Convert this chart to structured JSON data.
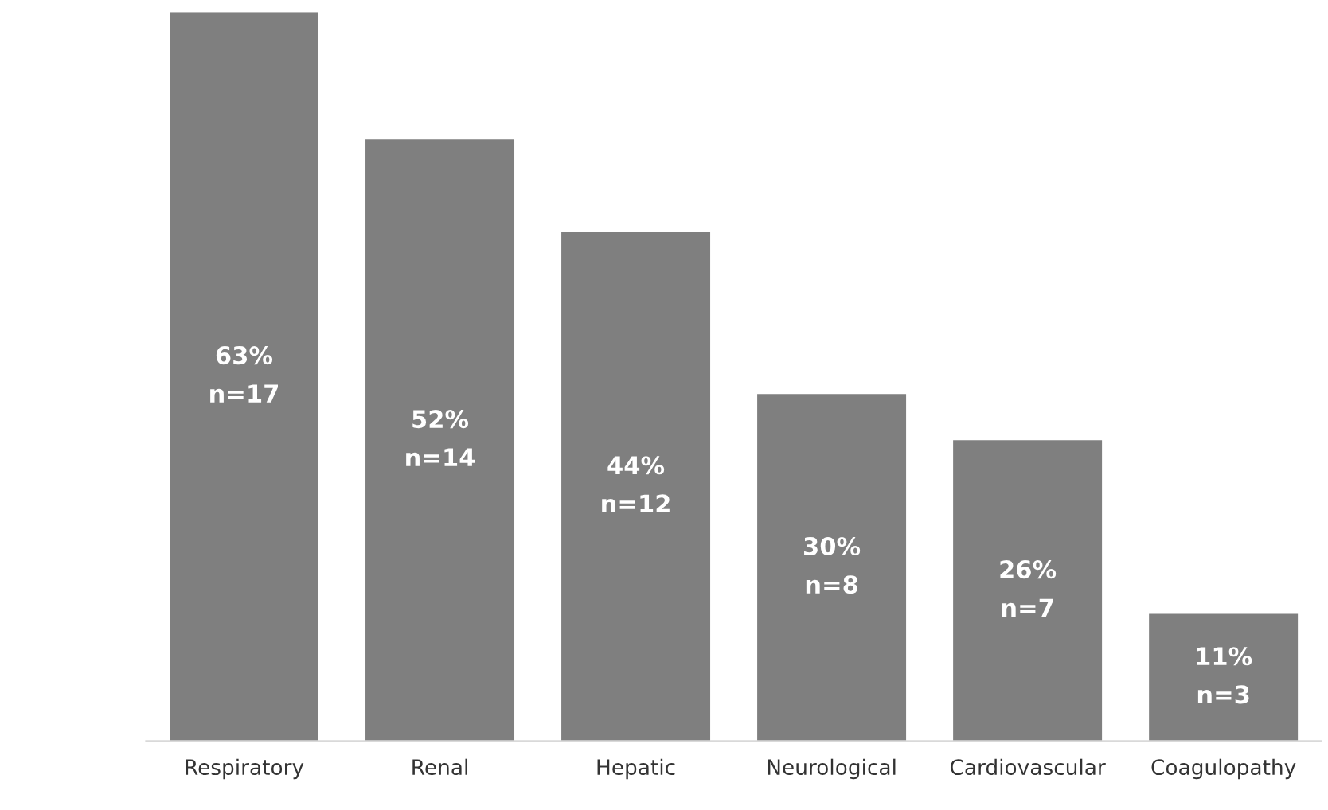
{
  "chart_data": {
    "type": "bar",
    "categories": [
      "Respiratory",
      "Renal",
      "Hepatic",
      "Neurological",
      "Cardiovascular",
      "Coagulopathy"
    ],
    "values": [
      63,
      52,
      44,
      30,
      26,
      11
    ],
    "value_labels": [
      "63%\nn=17",
      "52%\nn=14",
      "44%\nn=12",
      "30%\nn=8",
      "26%\nn=7",
      "11%\nn=3"
    ],
    "color": "#7f7f7f",
    "grid": false,
    "legend": false
  }
}
